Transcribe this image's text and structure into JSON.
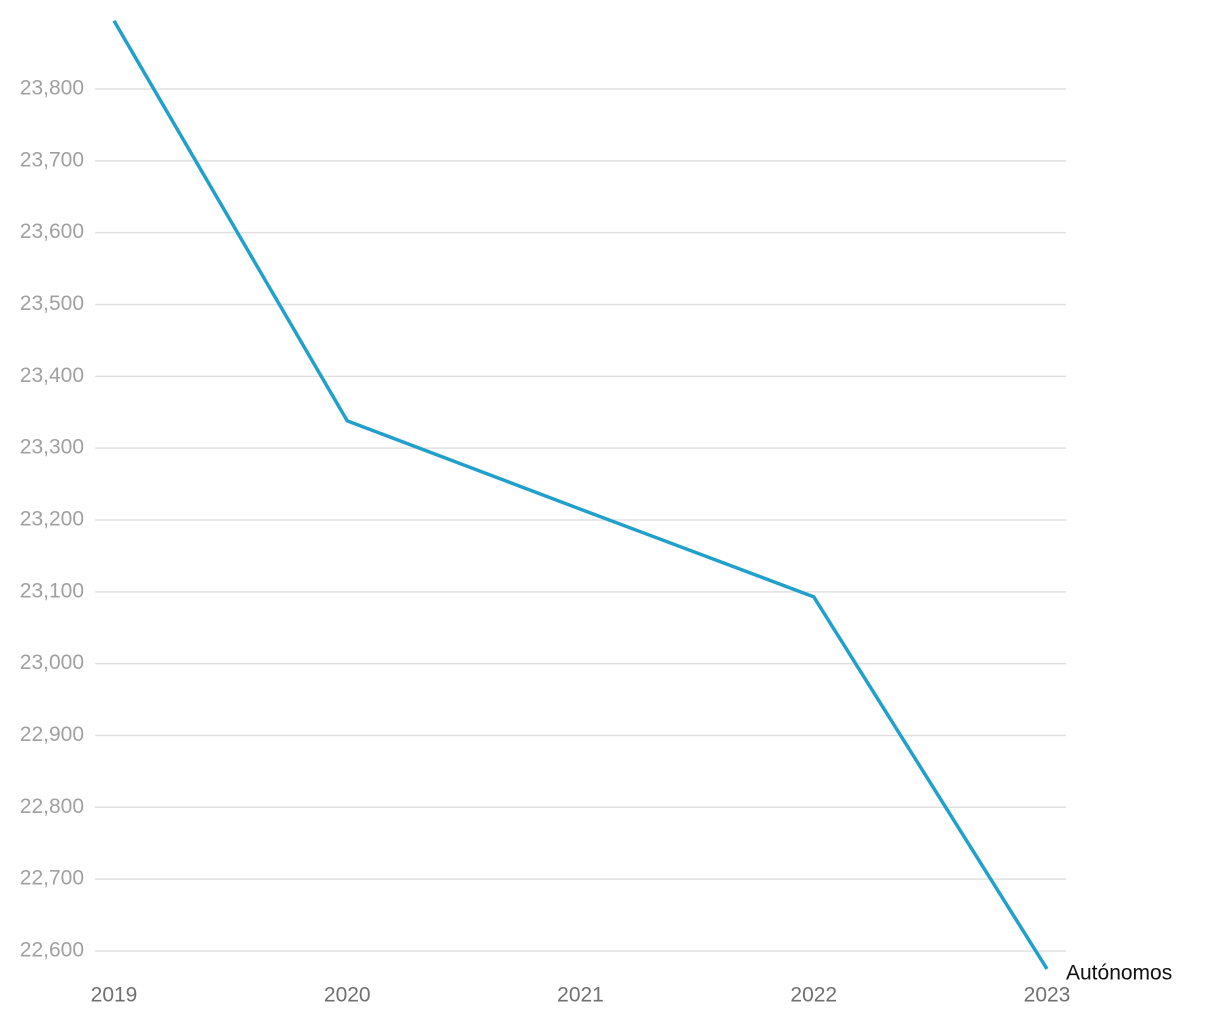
{
  "chart_data": {
    "type": "line",
    "categories": [
      "2019",
      "2020",
      "2021",
      "2022",
      "2023"
    ],
    "series": [
      {
        "name": "Autónomos",
        "color": "#21a0cb",
        "values": [
          23895,
          23338,
          23215,
          23093,
          22575
        ]
      }
    ],
    "ylim": [
      22570,
      23900
    ],
    "yticks": [
      {
        "value": 22600,
        "label": "22,600"
      },
      {
        "value": 22700,
        "label": "22,700"
      },
      {
        "value": 22800,
        "label": "22,800"
      },
      {
        "value": 22900,
        "label": "22,900"
      },
      {
        "value": 23000,
        "label": "23,000"
      },
      {
        "value": 23100,
        "label": "23,100"
      },
      {
        "value": 23200,
        "label": "23,200"
      },
      {
        "value": 23300,
        "label": "23,300"
      },
      {
        "value": 23400,
        "label": "23,400"
      },
      {
        "value": 23500,
        "label": "23,500"
      },
      {
        "value": 23600,
        "label": "23,600"
      },
      {
        "value": 23700,
        "label": "23,700"
      },
      {
        "value": 23800,
        "label": "23,800"
      }
    ],
    "grid": true
  }
}
